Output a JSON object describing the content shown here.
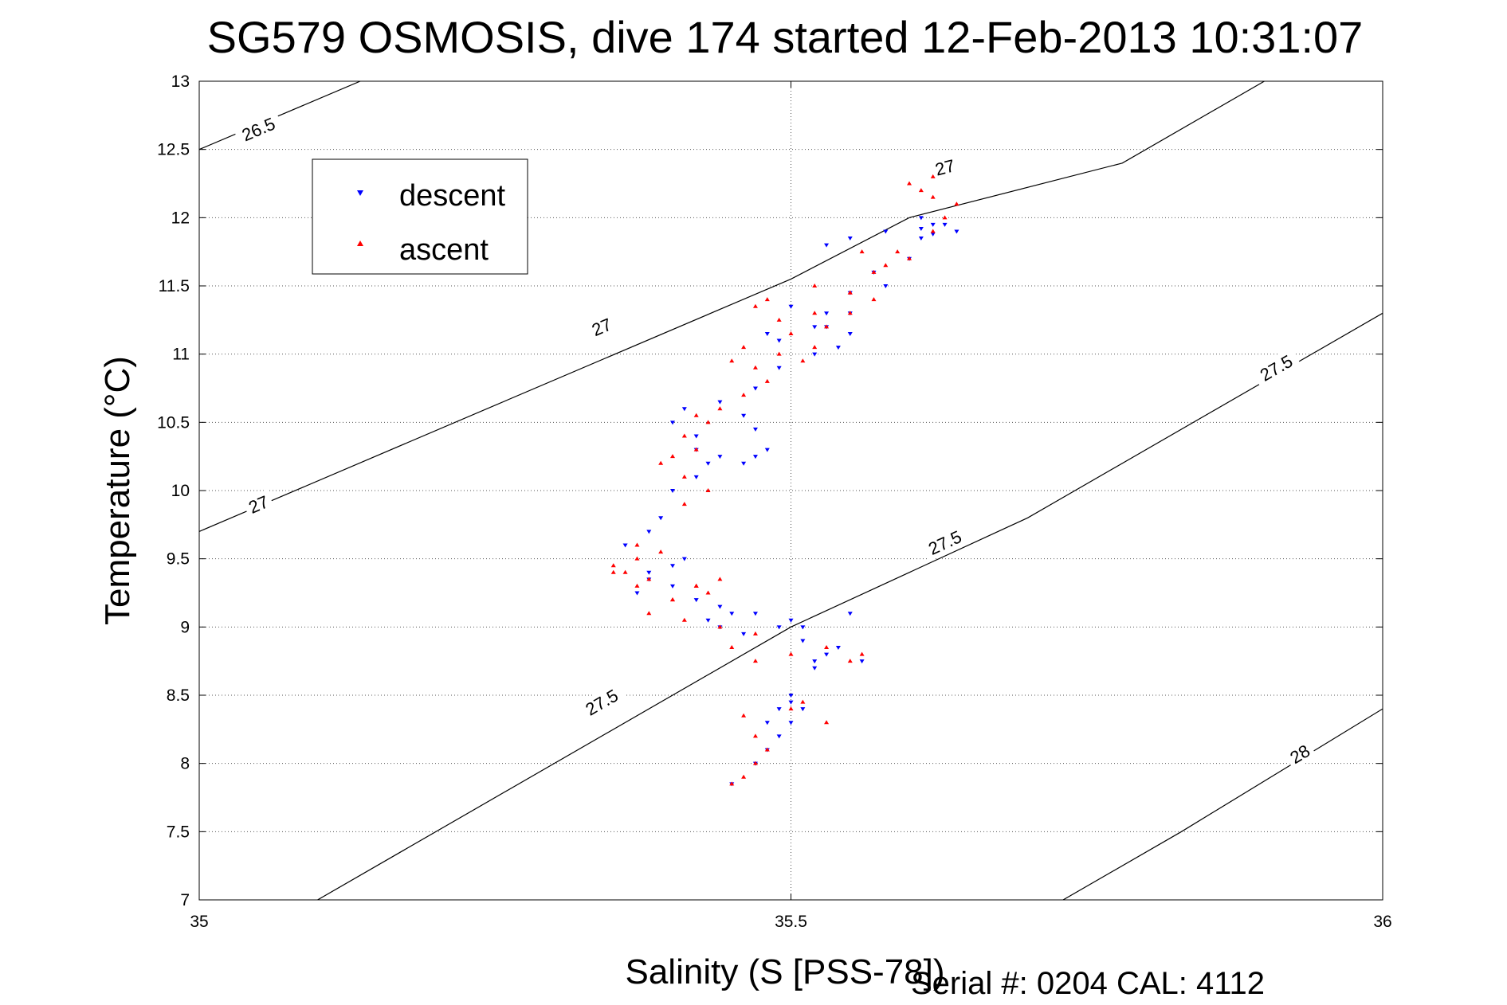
{
  "chart_data": {
    "type": "scatter",
    "title": "SG579 OSMOSIS, dive 174 started 12-Feb-2013 10:31:07",
    "xlabel": "Salinity (S [PSS-78])",
    "ylabel": "Temperature (°C)",
    "xlim": [
      35,
      36
    ],
    "ylim": [
      7,
      13
    ],
    "x_ticks": [
      "35",
      "35.5",
      "36"
    ],
    "y_ticks": [
      "7",
      "7.5",
      "8",
      "8.5",
      "9",
      "9.5",
      "10",
      "10.5",
      "11",
      "11.5",
      "12",
      "12.5",
      "13"
    ],
    "grid": "on (dotted)",
    "legend_position": "top-left",
    "footer": "Serial #: 0204  CAL: 4112",
    "density_contours": [
      {
        "label": "26.5",
        "points": [
          [
            35.0,
            12.5
          ],
          [
            35.136,
            13.0
          ]
        ],
        "labels_at": [
          [
            35.05,
            12.65
          ]
        ]
      },
      {
        "label": "27",
        "points": [
          [
            35.0,
            9.7
          ],
          [
            35.5,
            11.55
          ],
          [
            35.6,
            12.0
          ],
          [
            35.78,
            12.4
          ],
          [
            35.9,
            13.0
          ]
        ],
        "labels_at": [
          [
            35.05,
            9.9
          ],
          [
            35.34,
            11.2
          ],
          [
            35.63,
            12.37
          ]
        ]
      },
      {
        "label": "27.5",
        "points": [
          [
            35.1,
            7.0
          ],
          [
            35.5,
            9.0
          ],
          [
            35.7,
            9.8
          ],
          [
            36.0,
            11.3
          ]
        ],
        "labels_at": [
          [
            35.34,
            8.45
          ],
          [
            35.63,
            9.62
          ],
          [
            35.91,
            10.9
          ]
        ]
      },
      {
        "label": "28",
        "points": [
          [
            35.73,
            7.0
          ],
          [
            35.83,
            7.5
          ],
          [
            36.0,
            8.4
          ]
        ],
        "labels_at": [
          [
            35.93,
            8.07
          ]
        ]
      }
    ],
    "series": [
      {
        "name": "descent",
        "color": "#0000ff",
        "marker": "triangle-down",
        "x": [
          35.45,
          35.47,
          35.48,
          35.49,
          35.5,
          35.51,
          35.5,
          35.49,
          35.48,
          35.5,
          35.52,
          35.53,
          35.52,
          35.51,
          35.5,
          35.55,
          35.56,
          35.54,
          35.51,
          35.49,
          35.47,
          35.44,
          35.43,
          35.44,
          35.46,
          35.45,
          35.42,
          35.4,
          35.38,
          35.37,
          35.38,
          35.4,
          35.41,
          35.36,
          35.38,
          35.39,
          35.4,
          35.42,
          35.43,
          35.42,
          35.44,
          35.46,
          35.47,
          35.48,
          35.47,
          35.46,
          35.42,
          35.4,
          35.41,
          35.44,
          35.47,
          35.49,
          35.52,
          35.54,
          35.55,
          35.53,
          35.55,
          35.52,
          35.49,
          35.48,
          35.5,
          35.53,
          35.55,
          35.58,
          35.57,
          35.6,
          35.61,
          35.62,
          35.61,
          35.63,
          35.64,
          35.62,
          35.61,
          35.58,
          35.55,
          35.53
        ],
        "y": [
          7.85,
          8.0,
          8.1,
          8.2,
          8.3,
          8.4,
          8.45,
          8.4,
          8.3,
          8.5,
          8.75,
          8.8,
          8.7,
          9.0,
          9.05,
          9.1,
          8.75,
          8.85,
          8.9,
          9.0,
          9.1,
          9.15,
          9.05,
          9.0,
          8.95,
          9.1,
          9.2,
          9.3,
          9.35,
          9.25,
          9.4,
          9.45,
          9.5,
          9.6,
          9.7,
          9.8,
          10.0,
          10.1,
          10.2,
          10.3,
          10.25,
          10.2,
          10.25,
          10.3,
          10.45,
          10.55,
          10.4,
          10.5,
          10.6,
          10.65,
          10.75,
          10.9,
          11.0,
          11.05,
          11.15,
          11.2,
          11.3,
          11.2,
          11.1,
          11.15,
          11.35,
          11.3,
          11.45,
          11.5,
          11.6,
          11.7,
          11.85,
          11.95,
          12.0,
          11.95,
          11.9,
          11.88,
          11.92,
          11.9,
          11.85,
          11.8
        ]
      },
      {
        "name": "ascent",
        "color": "#ff0000",
        "marker": "triangle-up",
        "x": [
          35.45,
          35.46,
          35.47,
          35.48,
          35.47,
          35.46,
          35.5,
          35.51,
          35.53,
          35.55,
          35.56,
          35.53,
          35.5,
          35.47,
          35.45,
          35.47,
          35.44,
          35.41,
          35.38,
          35.4,
          35.42,
          35.44,
          35.43,
          35.4,
          35.37,
          35.35,
          35.37,
          35.39,
          35.37,
          35.35,
          35.36,
          35.38,
          35.42,
          35.41,
          35.43,
          35.41,
          35.39,
          35.4,
          35.42,
          35.41,
          35.43,
          35.42,
          35.44,
          35.46,
          35.48,
          35.47,
          35.45,
          35.46,
          35.49,
          35.51,
          35.52,
          35.5,
          35.53,
          35.55,
          35.57,
          35.55,
          35.52,
          35.48,
          35.47,
          35.49,
          35.52,
          35.55,
          35.57,
          35.58,
          35.56,
          35.59,
          35.6,
          35.62,
          35.63,
          35.64,
          35.62,
          35.61,
          35.6,
          35.62
        ],
        "y": [
          7.85,
          7.9,
          8.0,
          8.1,
          8.2,
          8.35,
          8.4,
          8.45,
          8.3,
          8.75,
          8.8,
          8.85,
          8.8,
          8.75,
          8.85,
          8.95,
          9.0,
          9.05,
          9.1,
          9.2,
          9.3,
          9.35,
          9.25,
          9.2,
          9.3,
          9.4,
          9.5,
          9.55,
          9.6,
          9.45,
          9.4,
          9.35,
          9.3,
          9.9,
          10.0,
          10.1,
          10.2,
          10.25,
          10.3,
          10.4,
          10.5,
          10.55,
          10.6,
          10.7,
          10.8,
          10.9,
          10.95,
          11.05,
          11.0,
          10.95,
          11.05,
          11.15,
          11.2,
          11.3,
          11.4,
          11.45,
          11.5,
          11.4,
          11.35,
          11.25,
          11.3,
          11.45,
          11.6,
          11.65,
          11.75,
          11.75,
          11.7,
          11.9,
          12.0,
          12.1,
          12.15,
          12.2,
          12.25,
          12.3
        ]
      }
    ]
  }
}
